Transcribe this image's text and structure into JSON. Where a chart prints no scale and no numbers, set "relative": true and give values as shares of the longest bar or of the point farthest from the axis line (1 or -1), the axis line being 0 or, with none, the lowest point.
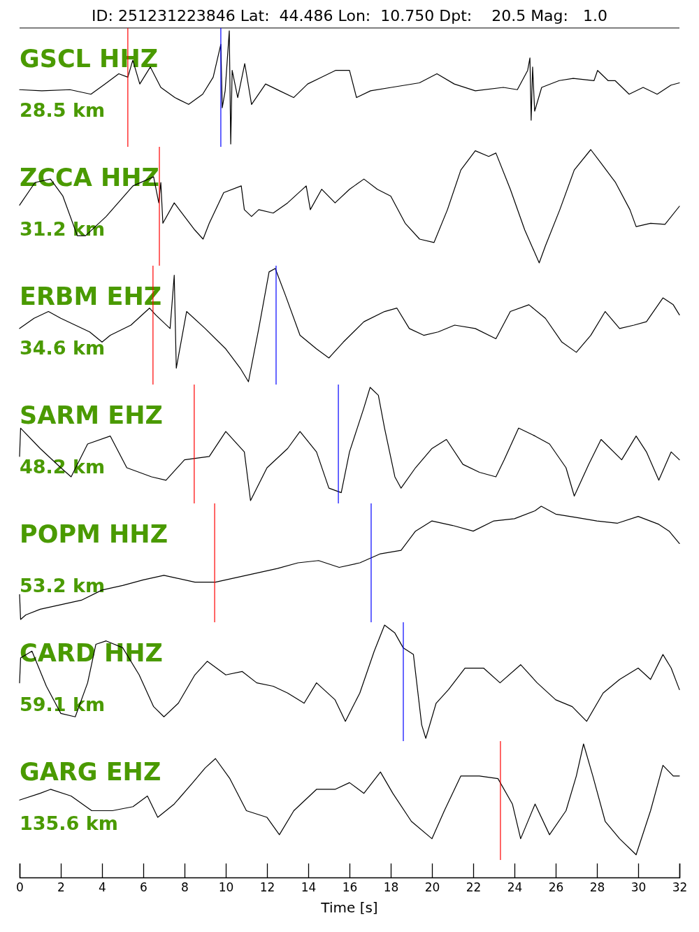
{
  "chart_data": [
    {
      "type": "line",
      "title": "ID: 251231223846 Lat:  44.486 Lon:  10.750 Dpt:    20.5 Mag:   1.0",
      "relative": true,
      "xlim": [
        0,
        32
      ],
      "tick_labels": false,
      "annotations": [
        "GSCL HHZ",
        "28.5 km"
      ],
      "ref_lines": [
        {
          "axis": "x",
          "value": 5.25,
          "color": "#ff0000"
        },
        {
          "axis": "x",
          "value": 9.76,
          "color": "#0000ff"
        }
      ],
      "series": [
        {
          "color": "#000000",
          "x": [
            0,
            1.08,
            2.44,
            3.46,
            4.14,
            4.81,
            5.25,
            5.49,
            5.83,
            6.34,
            6.85,
            7.53,
            8.2,
            8.88,
            9.39,
            9.76,
            9.83,
            9.97,
            10.17,
            10.24,
            10.31,
            10.58,
            10.92,
            11.25,
            11.93,
            12.61,
            13.29,
            13.97,
            14.64,
            15.32,
            16.0,
            16.34,
            17.02,
            18.03,
            19.39,
            20.24,
            21.08,
            22.1,
            23.46,
            24.14,
            24.64,
            24.75,
            24.81,
            24.88,
            24.98,
            25.32,
            26.17,
            26.85,
            27.86,
            28.03,
            28.54,
            28.88,
            29.56,
            30.24,
            30.92,
            31.59,
            32
          ],
          "values": [
            0.48,
            0.47,
            0.48,
            0.44,
            0.53,
            0.62,
            0.59,
            0.74,
            0.53,
            0.68,
            0.5,
            0.41,
            0.35,
            0.44,
            0.59,
            0.88,
            0.32,
            0.47,
            1.0,
            0,
            0.65,
            0.41,
            0.71,
            0.35,
            0.53,
            0.47,
            0.41,
            0.53,
            0.59,
            0.65,
            0.65,
            0.41,
            0.47,
            0.5,
            0.54,
            0.62,
            0.53,
            0.47,
            0.5,
            0.48,
            0.65,
            0.76,
            0.21,
            0.68,
            0.29,
            0.5,
            0.56,
            0.58,
            0.56,
            0.65,
            0.56,
            0.56,
            0.44,
            0.5,
            0.44,
            0.52,
            0.54
          ]
        }
      ]
    },
    {
      "type": "line",
      "relative": true,
      "xlim": [
        0,
        32
      ],
      "tick_labels": false,
      "annotations": [
        "ZCCA HHZ",
        "31.2 km"
      ],
      "ref_lines": [
        {
          "axis": "x",
          "value": 6.78,
          "color": "#ff0000"
        }
      ],
      "series": [
        {
          "color": "#000000",
          "x": [
            0,
            0.75,
            1.5,
            2.1,
            2.8,
            3.2,
            4.2,
            5.5,
            6.5,
            6.75,
            6.85,
            6.95,
            7.5,
            8.5,
            8.9,
            9.2,
            9.9,
            10.75,
            10.9,
            11.25,
            11.6,
            12.3,
            13,
            13.9,
            14.1,
            14.65,
            15.3,
            16,
            16.7,
            17.35,
            18,
            18.7,
            19.4,
            20.1,
            20.75,
            21.4,
            22.1,
            22.75,
            23.1,
            23.8,
            24.5,
            25.2,
            25.5,
            26.2,
            26.9,
            27.7,
            28.2,
            28.9,
            29.6,
            29.9,
            30.6,
            31.3,
            32
          ],
          "values": [
            0.51,
            0.71,
            0.74,
            0.59,
            0.24,
            0.24,
            0.41,
            0.68,
            0.76,
            0.53,
            0.71,
            0.35,
            0.53,
            0.29,
            0.21,
            0.35,
            0.62,
            0.68,
            0.47,
            0.41,
            0.47,
            0.44,
            0.53,
            0.68,
            0.47,
            0.65,
            0.53,
            0.65,
            0.74,
            0.65,
            0.59,
            0.35,
            0.21,
            0.18,
            0.47,
            0.82,
            0.99,
            0.94,
            0.97,
            0.65,
            0.29,
            0,
            0.15,
            0.47,
            0.82,
            1.0,
            0.88,
            0.71,
            0.47,
            0.32,
            0.35,
            0.34,
            0.5
          ]
        }
      ]
    },
    {
      "type": "line",
      "relative": true,
      "xlim": [
        0,
        32
      ],
      "tick_labels": false,
      "annotations": [
        "ERBM EHZ",
        "34.6 km"
      ],
      "ref_lines": [
        {
          "axis": "x",
          "value": 6.47,
          "color": "#ff0000"
        },
        {
          "axis": "x",
          "value": 12.44,
          "color": "#0000ff"
        }
      ],
      "series": [
        {
          "color": "#000000",
          "x": [
            0,
            0.7,
            1.4,
            2,
            2.7,
            3.4,
            4,
            4.4,
            5.4,
            6.3,
            6.6,
            7.3,
            7.5,
            7.6,
            8.1,
            9,
            10,
            10.7,
            11.1,
            11.6,
            12.1,
            12.4,
            12.9,
            13.6,
            14.4,
            15,
            15.7,
            16.7,
            17.7,
            18.3,
            18.9,
            19.6,
            20.3,
            21.1,
            22.1,
            23.1,
            23.8,
            24.7,
            25.5,
            26.3,
            27,
            27.7,
            28.4,
            29.1,
            29.8,
            30.4,
            31.2,
            31.7,
            32
          ],
          "values": [
            0.47,
            0.56,
            0.62,
            0.56,
            0.5,
            0.44,
            0.35,
            0.41,
            0.5,
            0.65,
            0.59,
            0.47,
            0.94,
            0.12,
            0.62,
            0.47,
            0.29,
            0.12,
            0,
            0.47,
            0.97,
            1.0,
            0.76,
            0.41,
            0.29,
            0.21,
            0.35,
            0.53,
            0.62,
            0.65,
            0.47,
            0.41,
            0.44,
            0.5,
            0.47,
            0.38,
            0.62,
            0.68,
            0.56,
            0.35,
            0.26,
            0.41,
            0.62,
            0.47,
            0.5,
            0.53,
            0.74,
            0.68,
            0.59
          ]
        }
      ]
    },
    {
      "type": "line",
      "relative": true,
      "xlim": [
        0,
        32
      ],
      "tick_labels": false,
      "annotations": [
        "SARM EHZ",
        "48.2 km"
      ],
      "ref_lines": [
        {
          "axis": "x",
          "value": 8.47,
          "color": "#ff0000"
        },
        {
          "axis": "x",
          "value": 15.46,
          "color": "#0000ff"
        }
      ],
      "series": [
        {
          "color": "#000000",
          "x": [
            0,
            0.05,
            1,
            2,
            2.5,
            3.3,
            4.4,
            5.2,
            6.4,
            7.1,
            8,
            9.2,
            10,
            10.9,
            11.2,
            12,
            13,
            13.6,
            14.4,
            15,
            15.6,
            16,
            16.7,
            17,
            17.4,
            17.7,
            18.2,
            18.5,
            19.2,
            20,
            20.7,
            21.5,
            22.3,
            23.1,
            23.5,
            24.2,
            25,
            25.7,
            26.5,
            26.9,
            27.6,
            28.2,
            29.2,
            29.9,
            30.4,
            31,
            31.6,
            32
          ],
          "values": [
            0.39,
            0.64,
            0.46,
            0.29,
            0.21,
            0.5,
            0.57,
            0.29,
            0.21,
            0.18,
            0.36,
            0.39,
            0.61,
            0.43,
            0,
            0.29,
            0.46,
            0.61,
            0.43,
            0.11,
            0.07,
            0.43,
            0.82,
            1.0,
            0.93,
            0.64,
            0.21,
            0.11,
            0.29,
            0.46,
            0.54,
            0.32,
            0.25,
            0.21,
            0.36,
            0.64,
            0.57,
            0.5,
            0.29,
            0.04,
            0.32,
            0.54,
            0.36,
            0.57,
            0.43,
            0.18,
            0.43,
            0.36
          ]
        }
      ]
    },
    {
      "type": "line",
      "relative": true,
      "xlim": [
        0,
        32
      ],
      "tick_labels": false,
      "annotations": [
        "POPM HHZ",
        "53.2 km"
      ],
      "ref_lines": [
        {
          "axis": "x",
          "value": 9.46,
          "color": "#ff0000"
        },
        {
          "axis": "x",
          "value": 17.05,
          "color": "#0000ff"
        }
      ],
      "series": [
        {
          "color": "#000000",
          "x": [
            0,
            0.05,
            0.3,
            1,
            2,
            3,
            4,
            5,
            6,
            7,
            7.5,
            8.5,
            9.5,
            10.5,
            11.5,
            12.5,
            13.5,
            14.5,
            15.5,
            16.5,
            17.5,
            18.5,
            19.2,
            20,
            21,
            22,
            23,
            24,
            25,
            25.3,
            26,
            27,
            28,
            29,
            30,
            31,
            31.5,
            32
          ],
          "values": [
            0.22,
            0,
            0.04,
            0.09,
            0.13,
            0.17,
            0.26,
            0.3,
            0.35,
            0.39,
            0.37,
            0.33,
            0.33,
            0.37,
            0.41,
            0.45,
            0.5,
            0.52,
            0.46,
            0.5,
            0.58,
            0.61,
            0.78,
            0.87,
            0.83,
            0.78,
            0.87,
            0.89,
            0.96,
            1.0,
            0.93,
            0.9,
            0.87,
            0.85,
            0.91,
            0.84,
            0.78,
            0.67
          ]
        }
      ]
    },
    {
      "type": "line",
      "relative": true,
      "xlim": [
        0,
        32
      ],
      "tick_labels": false,
      "annotations": [
        "CARD HHZ",
        "59.1 km"
      ],
      "ref_lines": [
        {
          "axis": "x",
          "value": 18.61,
          "color": "#0000ff"
        }
      ],
      "series": [
        {
          "color": "#000000",
          "x": [
            0,
            0.05,
            0.6,
            1.3,
            2,
            2.7,
            3.3,
            3.7,
            4.2,
            5,
            5.8,
            6.5,
            7,
            7.7,
            8.5,
            9.1,
            10,
            10.8,
            11.5,
            12.3,
            13,
            13.8,
            14.4,
            15.3,
            15.8,
            16.5,
            17.2,
            17.7,
            18.2,
            18.6,
            19.1,
            19.5,
            19.7,
            20.2,
            20.8,
            21.6,
            22.5,
            23.3,
            24.3,
            25.1,
            26,
            26.8,
            27.5,
            28.3,
            29.1,
            30,
            30.6,
            31.2,
            31.6,
            32
          ],
          "values": [
            0.49,
            0.71,
            0.77,
            0.46,
            0.22,
            0.19,
            0.49,
            0.83,
            0.86,
            0.8,
            0.56,
            0.28,
            0.19,
            0.31,
            0.56,
            0.68,
            0.56,
            0.59,
            0.49,
            0.46,
            0.4,
            0.31,
            0.49,
            0.34,
            0.15,
            0.4,
            0.77,
            1.0,
            0.93,
            0.8,
            0.74,
            0.12,
            0,
            0.31,
            0.43,
            0.62,
            0.62,
            0.49,
            0.65,
            0.49,
            0.34,
            0.28,
            0.15,
            0.4,
            0.52,
            0.62,
            0.52,
            0.74,
            0.62,
            0.43
          ]
        }
      ]
    },
    {
      "type": "line",
      "relative": true,
      "xlim": [
        0,
        32
      ],
      "tick_labels": "x",
      "xlabel": "Time [s]",
      "annotations": [
        "GARG EHZ",
        "135.6 km"
      ],
      "ref_lines": [
        {
          "axis": "x",
          "value": 23.32,
          "color": "#ff0000"
        }
      ],
      "xticks": [
        0,
        2,
        4,
        6,
        8,
        10,
        12,
        14,
        16,
        18,
        20,
        22,
        24,
        26,
        28,
        30,
        32
      ],
      "series": [
        {
          "color": "#000000",
          "x": [
            0,
            1,
            1.5,
            2.5,
            3.5,
            4.5,
            5.5,
            6.2,
            6.7,
            7.5,
            8.4,
            9,
            9.5,
            10.2,
            11,
            12,
            12.6,
            13.3,
            14.4,
            15.3,
            16,
            16.7,
            17.5,
            18.1,
            19,
            20,
            20.6,
            21.4,
            22.3,
            23.2,
            23.9,
            24.3,
            25,
            25.7,
            26.5,
            27,
            27.35,
            27.8,
            28.4,
            29.1,
            29.9,
            30.6,
            31.2,
            31.7,
            32
          ],
          "values": [
            0.58,
            0.63,
            0.66,
            0.61,
            0.5,
            0.5,
            0.53,
            0.61,
            0.45,
            0.55,
            0.71,
            0.82,
            0.89,
            0.74,
            0.5,
            0.45,
            0.32,
            0.5,
            0.66,
            0.66,
            0.71,
            0.63,
            0.79,
            0.63,
            0.42,
            0.29,
            0.5,
            0.76,
            0.76,
            0.74,
            0.55,
            0.29,
            0.55,
            0.32,
            0.5,
            0.76,
            1.0,
            0.76,
            0.42,
            0.29,
            0.17,
            0.5,
            0.84,
            0.76,
            0.76
          ]
        }
      ]
    }
  ]
}
